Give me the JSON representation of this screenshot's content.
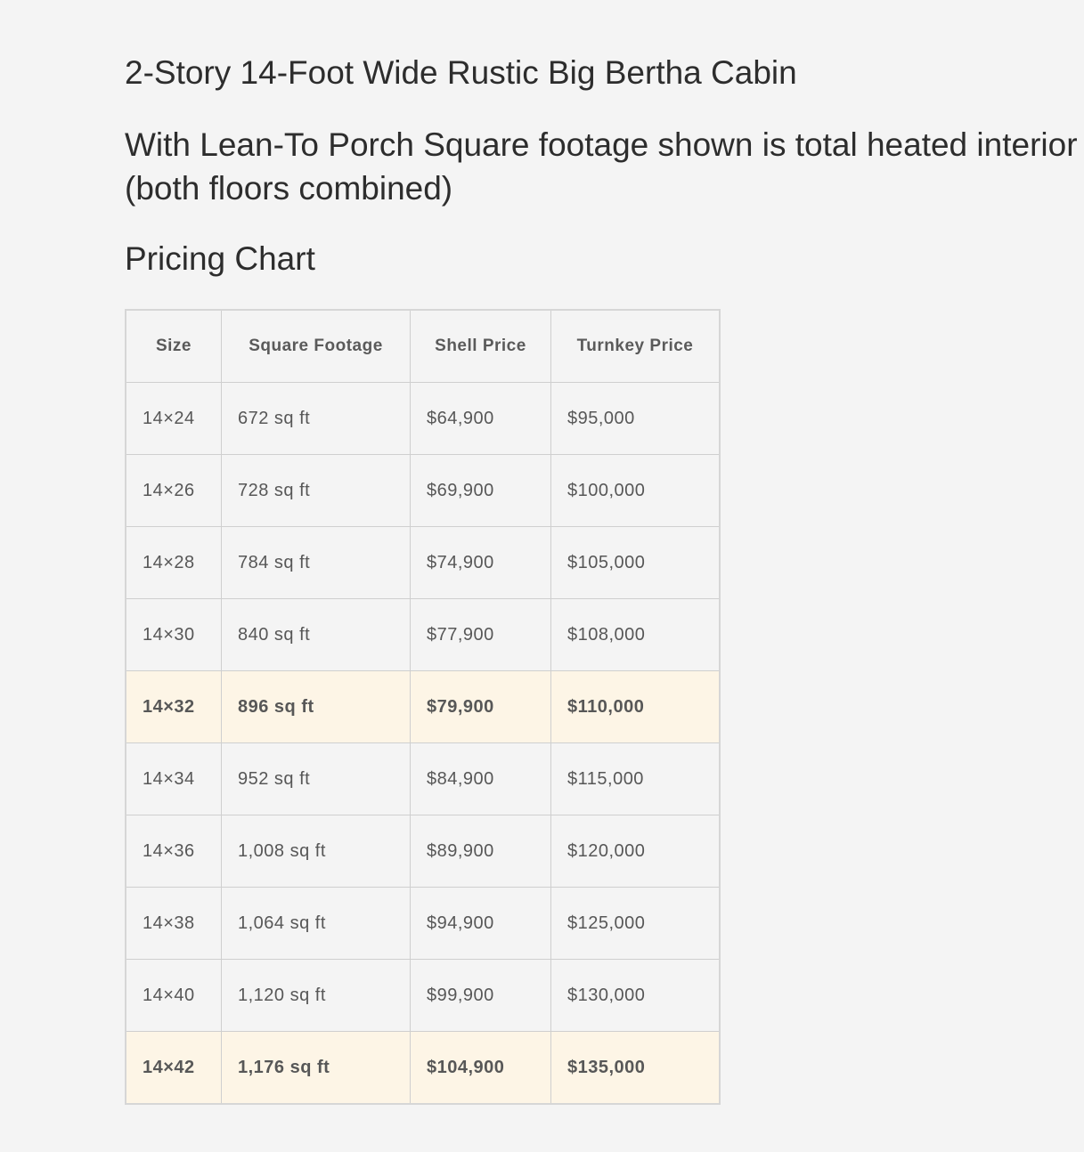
{
  "title": "2-Story 14-Foot Wide Rustic Big Bertha Cabin",
  "subtitle": "With Lean-To Porch Square footage shown is total heated interior (both floors combined)",
  "section_heading": "Pricing Chart",
  "highlight_color": "#fdf5e6",
  "table": {
    "headers": [
      "Size",
      "Square Footage",
      "Shell Price",
      "Turnkey Price"
    ],
    "rows": [
      {
        "cells": [
          "14×24",
          "672 sq ft",
          "$64,900",
          "$95,000"
        ],
        "highlighted": false
      },
      {
        "cells": [
          "14×26",
          "728 sq ft",
          "$69,900",
          "$100,000"
        ],
        "highlighted": false
      },
      {
        "cells": [
          "14×28",
          "784 sq ft",
          "$74,900",
          "$105,000"
        ],
        "highlighted": false
      },
      {
        "cells": [
          "14×30",
          "840 sq ft",
          "$77,900",
          "$108,000"
        ],
        "highlighted": false
      },
      {
        "cells": [
          "14×32",
          "896 sq ft",
          "$79,900",
          "$110,000"
        ],
        "highlighted": true
      },
      {
        "cells": [
          "14×34",
          "952 sq ft",
          "$84,900",
          "$115,000"
        ],
        "highlighted": false
      },
      {
        "cells": [
          "14×36",
          "1,008 sq ft",
          "$89,900",
          "$120,000"
        ],
        "highlighted": false
      },
      {
        "cells": [
          "14×38",
          "1,064 sq ft",
          "$94,900",
          "$125,000"
        ],
        "highlighted": false
      },
      {
        "cells": [
          "14×40",
          "1,120 sq ft",
          "$99,900",
          "$130,000"
        ],
        "highlighted": false
      },
      {
        "cells": [
          "14×42",
          "1,176 sq ft",
          "$104,900",
          "$135,000"
        ],
        "highlighted": true
      }
    ]
  }
}
